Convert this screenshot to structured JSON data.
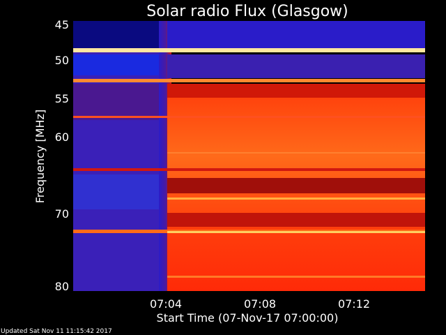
{
  "chart_data": {
    "type": "heatmap",
    "title": "Solar radio Flux (Glasgow)",
    "ylabel": "Frequency [MHz]",
    "xlabel": "Start Time (07-Nov-17 07:00:00)",
    "y_ticks": [
      "45",
      "50",
      "55",
      "60",
      "70",
      "80"
    ],
    "x_ticks": [
      "07:04",
      "07:08",
      "07:12"
    ],
    "updated_text": "Updated Sat Nov 11 11:15:42 2017",
    "colors": {
      "low": "#2a1cc9",
      "mid": "#b4100a",
      "high": "#ff3a08",
      "hot": "#ffd060",
      "background": "#000000"
    }
  }
}
